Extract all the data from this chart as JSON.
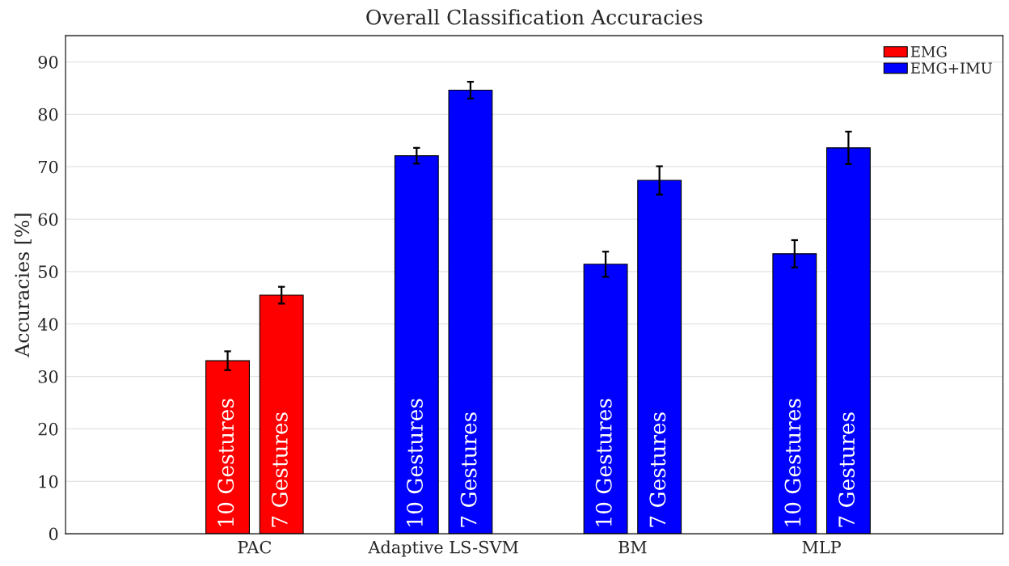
{
  "chart_data": {
    "type": "bar",
    "title": "Overall Classification Accuracies",
    "ylabel": "Accuracies [%]",
    "categories": [
      "PAC",
      "Adaptive LS-SVM",
      "BM",
      "MLP"
    ],
    "series": [
      {
        "name": "EMG",
        "color": "#ff0000",
        "values": [
          33.0,
          null,
          null,
          null
        ],
        "errors": [
          1.8,
          null,
          null,
          null
        ]
      },
      {
        "color": "#ff0000",
        "values": [
          45.5,
          null,
          null,
          null
        ],
        "errors": [
          1.6,
          null,
          null,
          null
        ]
      },
      {
        "name": "EMG+IMU",
        "color": "#0000ff",
        "values": [
          null,
          72.1,
          51.4,
          53.4
        ],
        "errors": [
          null,
          1.5,
          2.4,
          2.6
        ]
      },
      {
        "color": "#0000ff",
        "values": [
          null,
          84.6,
          67.4,
          73.6
        ],
        "errors": [
          null,
          1.6,
          2.7,
          3.1
        ]
      }
    ],
    "annotations": [
      "10 Gestures",
      "7 Gestures",
      "10 Gestures",
      "7 Gestures",
      "10 Gestures",
      "7 Gestures",
      "10 Gestures",
      "7 Gestures"
    ],
    "ylim": [
      0,
      95
    ],
    "yticks": [
      0,
      10,
      20,
      30,
      40,
      50,
      60,
      70,
      80,
      90
    ],
    "grid": "y",
    "legend": "top right"
  }
}
